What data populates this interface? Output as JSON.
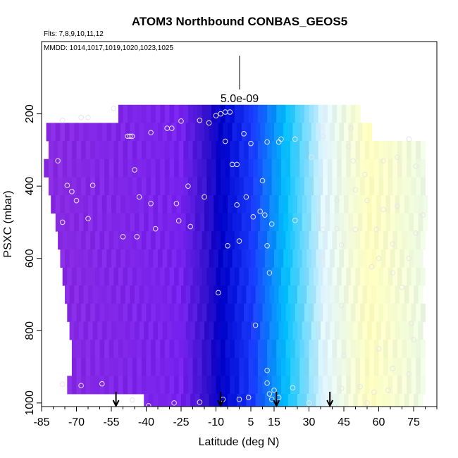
{
  "chart_data": {
    "type": "heatmap",
    "title": "ATOM3 Northbound CONBAS_GEOS5",
    "flights_label": "Flts: 7,8,9,10,11,12",
    "dates_label": "MMDD: 1014,1017,1019,1020,1023,1025",
    "scale_label": "5.0e-09",
    "xlabel": "Latitude (deg N)",
    "ylabel": "PSXC (mbar)",
    "xlim": [
      -85,
      85
    ],
    "ylim": [
      1010,
      0
    ],
    "x_ticks": [
      "-85",
      "-70",
      "-55",
      "-40",
      "-25",
      "-10",
      "5",
      "15",
      "30",
      "45",
      "60",
      "75"
    ],
    "y_ticks": [
      "200",
      "400",
      "600",
      "800",
      "1000"
    ],
    "grid": false,
    "colormap": [
      "#8a2be2",
      "#7722ee",
      "#3311cc",
      "#0000c8",
      "#1a3cff",
      "#00bfff",
      "#e0f4ff",
      "#ffffc0",
      "#e8f8ec"
    ],
    "arrow_latitudes": [
      -53,
      -8,
      16,
      39
    ],
    "pressure_rows": [
      200,
      250,
      300,
      350,
      400,
      450,
      500,
      550,
      600,
      650,
      700,
      750,
      800,
      850,
      900,
      950,
      1000
    ],
    "row_lat_extent": [
      [
        -52,
        52
      ],
      [
        -83,
        57
      ],
      [
        -82,
        79
      ],
      [
        -84,
        80
      ],
      [
        -82,
        80
      ],
      [
        -81,
        81
      ],
      [
        -79,
        80
      ],
      [
        -78,
        80
      ],
      [
        -77,
        79
      ],
      [
        -76,
        79
      ],
      [
        -75,
        79
      ],
      [
        -74,
        79
      ],
      [
        -73,
        79
      ],
      [
        -72,
        79
      ],
      [
        -72,
        79
      ],
      [
        -74,
        80
      ],
      [
        -41,
        79
      ]
    ],
    "sample_points": [
      [
        -54,
        185
      ],
      [
        -76,
        218
      ],
      [
        -68,
        210
      ],
      [
        -65,
        210
      ],
      [
        -48,
        262
      ],
      [
        -47,
        262
      ],
      [
        -46,
        262
      ],
      [
        -38,
        252
      ],
      [
        -31,
        240
      ],
      [
        -29,
        240
      ],
      [
        -25,
        220
      ],
      [
        -17,
        218
      ],
      [
        -10,
        205
      ],
      [
        -8,
        200
      ],
      [
        -6,
        195
      ],
      [
        -4,
        195
      ],
      [
        -13,
        225
      ],
      [
        -6,
        276
      ],
      [
        -3,
        340
      ],
      [
        -1,
        340
      ],
      [
        2,
        255
      ],
      [
        5,
        282
      ],
      [
        -45,
        355
      ],
      [
        -63,
        398
      ],
      [
        -74,
        398
      ],
      [
        -72,
        415
      ],
      [
        -78,
        330
      ],
      [
        -43,
        430
      ],
      [
        -38,
        448
      ],
      [
        -27,
        448
      ],
      [
        -22,
        400
      ],
      [
        -15,
        430
      ],
      [
        -1,
        452
      ],
      [
        3,
        430
      ],
      [
        6,
        485
      ],
      [
        9,
        470
      ],
      [
        11,
        480
      ],
      [
        14,
        505
      ],
      [
        10,
        385
      ],
      [
        12,
        278
      ],
      [
        17,
        278
      ],
      [
        18,
        270
      ],
      [
        24,
        270
      ],
      [
        35,
        235
      ],
      [
        48,
        240
      ],
      [
        -70,
        440
      ],
      [
        -76,
        500
      ],
      [
        -65,
        490
      ],
      [
        -50,
        540
      ],
      [
        -44,
        540
      ],
      [
        -36,
        518
      ],
      [
        -21,
        512
      ],
      [
        -26,
        496
      ],
      [
        0,
        552
      ],
      [
        -5,
        565
      ],
      [
        12,
        565
      ],
      [
        24,
        495
      ],
      [
        36,
        520
      ],
      [
        42,
        518
      ],
      [
        44,
        563
      ],
      [
        35,
        600
      ],
      [
        13,
        640
      ],
      [
        -9,
        695
      ],
      [
        7,
        785
      ],
      [
        12,
        910
      ],
      [
        12,
        945
      ],
      [
        13,
        975
      ],
      [
        14,
        990
      ],
      [
        15,
        965
      ],
      [
        23,
        958
      ],
      [
        17,
        985
      ],
      [
        -7,
        990
      ],
      [
        0,
        990
      ],
      [
        4,
        985
      ],
      [
        -17,
        998
      ],
      [
        -28,
        1000
      ],
      [
        -39,
        1008
      ],
      [
        -46,
        992
      ],
      [
        -68,
        952
      ],
      [
        -76,
        948
      ],
      [
        -59,
        947
      ],
      [
        39,
        985
      ],
      [
        44,
        960
      ],
      [
        52,
        955
      ],
      [
        58,
        970
      ],
      [
        64,
        965
      ],
      [
        73,
        920
      ],
      [
        66,
        905
      ],
      [
        75,
        825
      ],
      [
        74,
        780
      ],
      [
        70,
        680
      ],
      [
        73,
        600
      ],
      [
        66,
        560
      ],
      [
        59,
        520
      ],
      [
        60,
        600
      ],
      [
        55,
        440
      ],
      [
        62,
        465
      ],
      [
        68,
        455
      ],
      [
        76,
        530
      ],
      [
        79,
        480
      ],
      [
        50,
        410
      ],
      [
        62,
        330
      ],
      [
        68,
        320
      ],
      [
        76,
        345
      ],
      [
        73,
        270
      ],
      [
        49,
        330
      ],
      [
        54,
        368
      ],
      [
        36,
        262
      ],
      [
        31,
        320
      ],
      [
        47,
        290
      ],
      [
        50,
        520
      ],
      [
        57,
        623
      ],
      [
        66,
        640
      ],
      [
        42,
        440
      ],
      [
        44,
        730
      ],
      [
        60,
        850
      ],
      [
        45,
        870
      ],
      [
        30,
        1000
      ],
      [
        55,
        1000
      ]
    ]
  }
}
